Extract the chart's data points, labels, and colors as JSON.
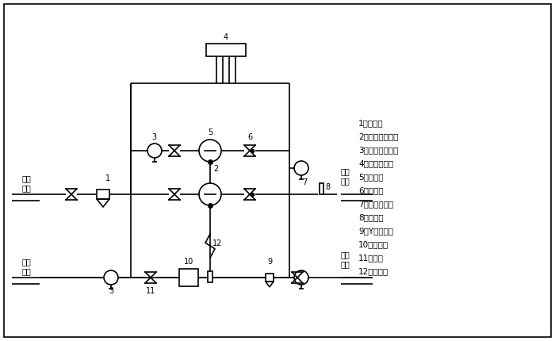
{
  "bg_color": "#ffffff",
  "line_color": "#000000",
  "lw": 1.2,
  "legend_items": [
    "1、除污器",
    "2、驅動管控制閥",
    "3、電接點壓力表",
    "4、變頻控制柜",
    "5、增壓泵",
    "6、止回閥",
    "7、遠傳壓力表",
    "8、溫度計",
    "9、Y型過濾器",
    "10、阻斷器",
    "11、蝶閥",
    "12、驅動管"
  ],
  "label_shizhenggongshui": "市政\n供水",
  "label_shizhenghuishui": "市政\n回水",
  "label_gaoqugongshui": "高區\n供水",
  "label_gaoquhuishui": "高區\n回水",
  "font_size_label": 7,
  "font_size_number": 7,
  "font_size_legend": 7.5
}
